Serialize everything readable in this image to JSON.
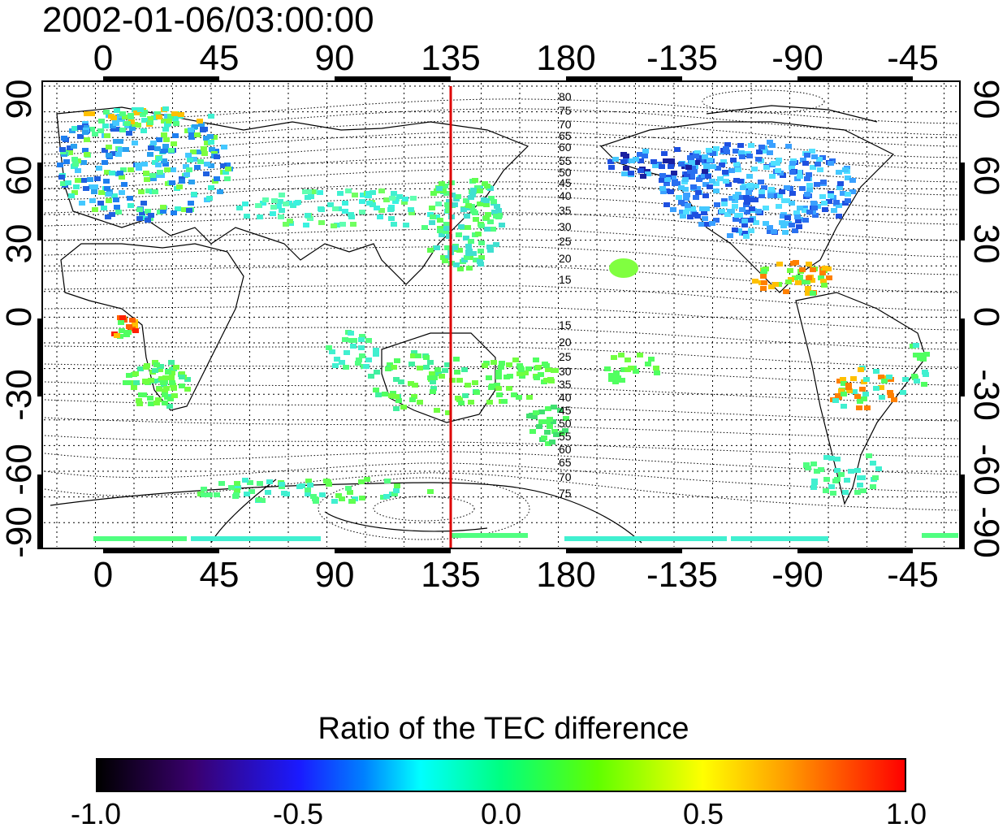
{
  "timestamp": "2002-01-06/03:00:00",
  "map": {
    "lon_ticks": [
      "0",
      "45",
      "90",
      "135",
      "180",
      "-135",
      "-90",
      "-45"
    ],
    "lat_ticks": [
      "90",
      "60",
      "30",
      "0",
      "-30",
      "-60",
      "-90"
    ],
    "marker_longitude": 135,
    "marker_color": "#dd0000",
    "contour_labels_north": [
      "80",
      "75",
      "70",
      "65",
      "60",
      "55",
      "50",
      "45",
      "40",
      "35",
      "30",
      "25",
      "20",
      "15"
    ],
    "contour_labels_south": [
      "15",
      "20",
      "25",
      "30",
      "35",
      "40",
      "45",
      "50",
      "55",
      "60",
      "65",
      "70",
      "75"
    ],
    "grid": true
  },
  "colorbar": {
    "title": "Ratio of the TEC difference",
    "ticks": [
      "-1.0",
      "-0.5",
      "0.0",
      "0.5",
      "1.0"
    ],
    "range": [
      -1.0,
      1.0
    ],
    "colormap": [
      "#000000",
      "#3a006f",
      "#1a1aff",
      "#0080ff",
      "#00ffff",
      "#00ff80",
      "#60ff00",
      "#ffff00",
      "#ffa000",
      "#ff0000"
    ]
  }
}
